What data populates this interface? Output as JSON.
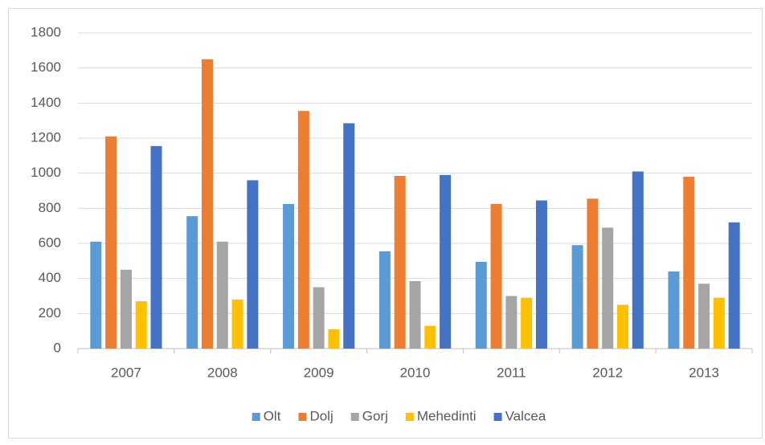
{
  "chart_data": {
    "type": "bar",
    "categories": [
      "2007",
      "2008",
      "2009",
      "2010",
      "2011",
      "2012",
      "2013"
    ],
    "series": [
      {
        "name": "Olt",
        "color": "#5b9bd5",
        "values": [
          610,
          755,
          825,
          555,
          495,
          590,
          440
        ]
      },
      {
        "name": "Dolj",
        "color": "#ed7d31",
        "values": [
          1210,
          1650,
          1355,
          985,
          825,
          855,
          980
        ]
      },
      {
        "name": "Gorj",
        "color": "#a5a5a5",
        "values": [
          450,
          610,
          350,
          385,
          300,
          690,
          370
        ]
      },
      {
        "name": "Mehedinti",
        "color": "#ffc000",
        "values": [
          270,
          280,
          110,
          130,
          290,
          250,
          290
        ]
      },
      {
        "name": "Valcea",
        "color": "#4472c4",
        "values": [
          1155,
          960,
          1285,
          990,
          845,
          1010,
          720
        ]
      }
    ],
    "ylim": [
      0,
      1800
    ],
    "yticks": [
      0,
      200,
      400,
      600,
      800,
      1000,
      1200,
      1400,
      1600,
      1800
    ],
    "grid": true,
    "legend": "bottom"
  }
}
